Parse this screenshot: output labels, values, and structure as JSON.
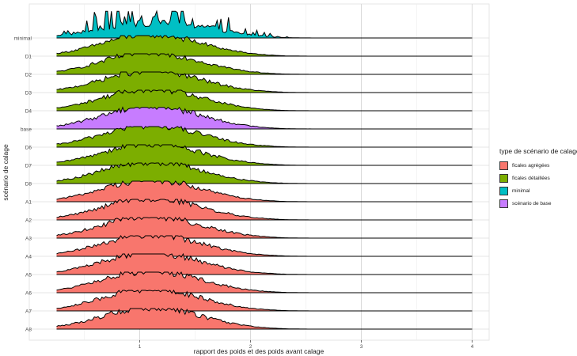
{
  "chart_data": {
    "type": "area",
    "subtype": "ridgeline",
    "title": "",
    "xlabel": "rapport des poids et des poids avant calage",
    "ylabel": "scénario de calage",
    "xlim": [
      0.0,
      4.1
    ],
    "x_ticks": [
      1,
      2,
      3,
      4
    ],
    "x_tick_labels": [
      "1",
      "2",
      "3",
      "4"
    ],
    "grid": true,
    "legend_position": "right",
    "legend_title": "type de scénario de calage",
    "legend": [
      {
        "key": "agregees",
        "label": "ficales agrégées",
        "color": "#F8766D"
      },
      {
        "key": "detaillees",
        "label": "ficales détaillées",
        "color": "#7CAE00"
      },
      {
        "key": "minimal",
        "label": "minimal",
        "color": "#00BFC4"
      },
      {
        "key": "base",
        "label": "scénario de base",
        "color": "#C77CFF"
      }
    ],
    "ridges": [
      {
        "label": "minimal",
        "group": "minimal",
        "x_min": 0.25,
        "x_max": 4.0,
        "peak_x": 1.1,
        "spread": 0.45,
        "relative_height": 1.3,
        "spiky": true
      },
      {
        "label": "D1",
        "group": "detaillees",
        "x_min": 0.25,
        "x_max": 4.0,
        "peak_x": 1.05,
        "spread": 0.4,
        "relative_height": 1.0
      },
      {
        "label": "D2",
        "group": "detaillees",
        "x_min": 0.25,
        "x_max": 4.0,
        "peak_x": 1.05,
        "spread": 0.4,
        "relative_height": 1.0
      },
      {
        "label": "D3",
        "group": "detaillees",
        "x_min": 0.25,
        "x_max": 4.0,
        "peak_x": 1.05,
        "spread": 0.4,
        "relative_height": 1.0
      },
      {
        "label": "D4",
        "group": "detaillees",
        "x_min": 0.25,
        "x_max": 4.0,
        "peak_x": 1.05,
        "spread": 0.4,
        "relative_height": 1.0
      },
      {
        "label": "base",
        "group": "base",
        "x_min": 0.25,
        "x_max": 4.0,
        "peak_x": 1.05,
        "spread": 0.4,
        "relative_height": 1.05
      },
      {
        "label": "D6",
        "group": "detaillees",
        "x_min": 0.25,
        "x_max": 4.0,
        "peak_x": 1.05,
        "spread": 0.4,
        "relative_height": 1.0
      },
      {
        "label": "D7",
        "group": "detaillees",
        "x_min": 0.25,
        "x_max": 4.0,
        "peak_x": 1.05,
        "spread": 0.4,
        "relative_height": 1.0
      },
      {
        "label": "D8",
        "group": "detaillees",
        "x_min": 0.25,
        "x_max": 4.0,
        "peak_x": 1.05,
        "spread": 0.4,
        "relative_height": 1.0
      },
      {
        "label": "A1",
        "group": "agregees",
        "x_min": 0.25,
        "x_max": 4.0,
        "peak_x": 1.05,
        "spread": 0.4,
        "relative_height": 1.0
      },
      {
        "label": "A2",
        "group": "agregees",
        "x_min": 0.25,
        "x_max": 4.0,
        "peak_x": 1.05,
        "spread": 0.4,
        "relative_height": 1.0
      },
      {
        "label": "A3",
        "group": "agregees",
        "x_min": 0.25,
        "x_max": 4.0,
        "peak_x": 1.05,
        "spread": 0.4,
        "relative_height": 1.0
      },
      {
        "label": "A4",
        "group": "agregees",
        "x_min": 0.25,
        "x_max": 4.0,
        "peak_x": 1.05,
        "spread": 0.4,
        "relative_height": 1.0
      },
      {
        "label": "A5",
        "group": "agregees",
        "x_min": 0.25,
        "x_max": 4.0,
        "peak_x": 1.05,
        "spread": 0.4,
        "relative_height": 1.0
      },
      {
        "label": "A6",
        "group": "agregees",
        "x_min": 0.25,
        "x_max": 4.0,
        "peak_x": 1.05,
        "spread": 0.4,
        "relative_height": 1.0
      },
      {
        "label": "A7",
        "group": "agregees",
        "x_min": 0.25,
        "x_max": 4.0,
        "peak_x": 1.05,
        "spread": 0.4,
        "relative_height": 1.0
      },
      {
        "label": "A8",
        "group": "agregees",
        "x_min": 0.25,
        "x_max": 4.0,
        "peak_x": 1.05,
        "spread": 0.4,
        "relative_height": 1.0
      }
    ]
  }
}
